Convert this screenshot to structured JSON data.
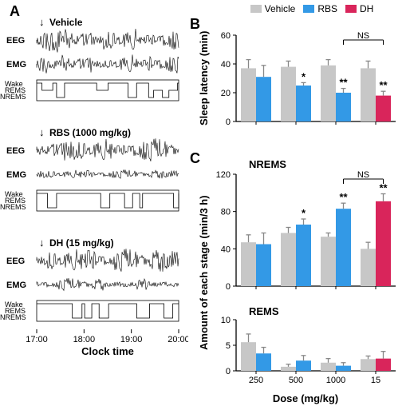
{
  "panel_labels": {
    "A": "A",
    "B": "B",
    "C": "C"
  },
  "legend": {
    "items": [
      {
        "label": "Vehicle",
        "color": "#c7c7c7"
      },
      {
        "label": "RBS",
        "color": "#3399e6"
      },
      {
        "label": "DH",
        "color": "#d9255b"
      }
    ]
  },
  "panel_A": {
    "x_axis_label": "Clock time",
    "x_ticks": [
      "17:00",
      "18:00",
      "19:00",
      "20:00"
    ],
    "groups": [
      {
        "title": "Vehicle",
        "arrow": true
      },
      {
        "title": "RBS (1000 mg/kg)",
        "arrow": true
      },
      {
        "title": "DH (15 mg/kg)",
        "arrow": true
      }
    ],
    "row_labels": {
      "eeg": "EEG",
      "emg": "EMG",
      "wake": "Wake",
      "rems": "REMS",
      "nrems": "NREMS"
    },
    "trace_color": "#000000",
    "box_stroke": "#000000"
  },
  "panel_B": {
    "y_axis_label": "Sleep latency (min)",
    "x_axis_label": "Dose (mg/kg)",
    "ylim": [
      0,
      60
    ],
    "ytick_step": 20,
    "groups": [
      {
        "x_label": "250",
        "bars": [
          {
            "series": "Vehicle",
            "value": 37,
            "err": 6
          },
          {
            "series": "RBS",
            "value": 31,
            "err": 8
          }
        ],
        "sig": ""
      },
      {
        "x_label": "500",
        "bars": [
          {
            "series": "Vehicle",
            "value": 38,
            "err": 4
          },
          {
            "series": "RBS",
            "value": 25,
            "err": 2
          }
        ],
        "sig": "*"
      },
      {
        "x_label": "1000",
        "bars": [
          {
            "series": "Vehicle",
            "value": 39,
            "err": 4
          },
          {
            "series": "RBS",
            "value": 20,
            "err": 3
          }
        ],
        "sig": "**"
      },
      {
        "x_label": "15",
        "bars": [
          {
            "series": "Vehicle",
            "value": 37,
            "err": 5
          },
          {
            "series": "DH",
            "value": 18,
            "err": 3
          }
        ],
        "sig": "**"
      }
    ],
    "ns_compare": {
      "from_group": 2,
      "to_group": 3,
      "label": "NS"
    },
    "colors": {
      "Vehicle": "#c7c7c7",
      "RBS": "#3399e6",
      "DH": "#d9255b"
    },
    "bar_width": 0.38,
    "err_color": "#888888"
  },
  "panel_C": {
    "y_axis_label": "Amount of each stage (min/3 h)",
    "x_axis_label": "Dose (mg/kg)",
    "subplots": [
      {
        "title": "NREMS",
        "ylim": [
          0,
          120
        ],
        "ytick_step": 40,
        "groups": [
          {
            "x_label": "250",
            "bars": [
              {
                "series": "Vehicle",
                "value": 47,
                "err": 8
              },
              {
                "series": "RBS",
                "value": 45,
                "err": 12
              }
            ],
            "sig": ""
          },
          {
            "x_label": "500",
            "bars": [
              {
                "series": "Vehicle",
                "value": 57,
                "err": 6
              },
              {
                "series": "RBS",
                "value": 66,
                "err": 6
              }
            ],
            "sig": "*"
          },
          {
            "x_label": "1000",
            "bars": [
              {
                "series": "Vehicle",
                "value": 53,
                "err": 4
              },
              {
                "series": "RBS",
                "value": 83,
                "err": 6
              }
            ],
            "sig": "**"
          },
          {
            "x_label": "15",
            "bars": [
              {
                "series": "Vehicle",
                "value": 40,
                "err": 7
              },
              {
                "series": "DH",
                "value": 91,
                "err": 8
              }
            ],
            "sig": "**"
          }
        ],
        "ns_compare": {
          "from_group": 2,
          "to_group": 3,
          "label": "NS"
        }
      },
      {
        "title": "REMS",
        "ylim": [
          0,
          10
        ],
        "ytick_step": 5,
        "groups": [
          {
            "x_label": "250",
            "bars": [
              {
                "series": "Vehicle",
                "value": 5.6,
                "err": 1.6
              },
              {
                "series": "RBS",
                "value": 3.4,
                "err": 1.2
              }
            ],
            "sig": ""
          },
          {
            "x_label": "500",
            "bars": [
              {
                "series": "Vehicle",
                "value": 0.8,
                "err": 0.5
              },
              {
                "series": "RBS",
                "value": 2.0,
                "err": 1.0
              }
            ],
            "sig": ""
          },
          {
            "x_label": "1000",
            "bars": [
              {
                "series": "Vehicle",
                "value": 1.6,
                "err": 0.8
              },
              {
                "series": "RBS",
                "value": 1.0,
                "err": 0.6
              }
            ],
            "sig": ""
          },
          {
            "x_label": "15",
            "bars": [
              {
                "series": "Vehicle",
                "value": 2.3,
                "err": 0.6
              },
              {
                "series": "DH",
                "value": 2.4,
                "err": 1.4
              }
            ],
            "sig": ""
          }
        ]
      }
    ],
    "colors": {
      "Vehicle": "#c7c7c7",
      "RBS": "#3399e6",
      "DH": "#d9255b"
    },
    "bar_width": 0.38,
    "err_color": "#888888"
  }
}
